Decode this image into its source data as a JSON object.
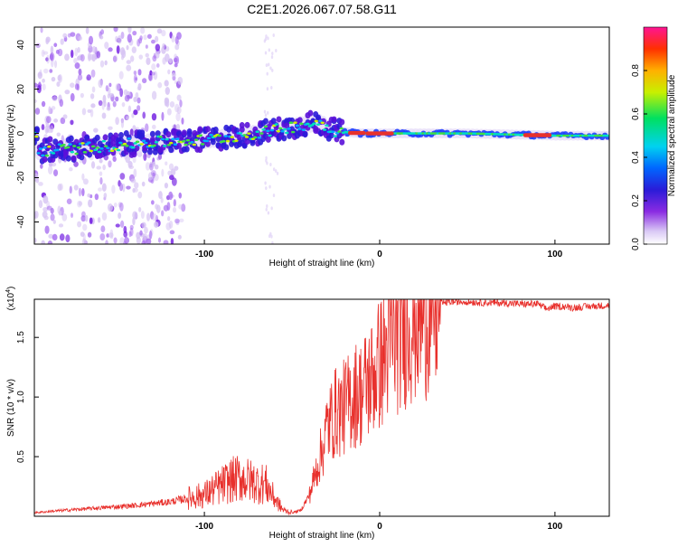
{
  "title": "C2E1.2026.067.07.58.G11",
  "colors": {
    "snr_line": "#e8302c",
    "spectrogram_low": "#c9a8f0",
    "spectrogram_mid": "#00c8ff",
    "spectrogram_high": "#e8302c"
  },
  "chart_data": [
    {
      "type": "heatmap",
      "title": "C2E1.2026.067.07.58.G11",
      "xlabel": "Height of straight line (km)",
      "ylabel": "Frequency (Hz)",
      "xlim": [
        -197,
        131
      ],
      "ylim": [
        -50,
        48
      ],
      "xticks": [
        -100,
        0,
        100
      ],
      "yticks": [
        -40,
        -20,
        0,
        20,
        40
      ],
      "colorbar": {
        "label": "Normalized spectral amplitude",
        "range": [
          0,
          1
        ],
        "ticks": [
          "0.0",
          "0.2",
          "0.4",
          "0.6",
          "0.8"
        ]
      },
      "ridge": {
        "description_points_km_hz": [
          [
            -195,
            -8
          ],
          [
            -160,
            -6
          ],
          [
            -130,
            -4
          ],
          [
            -100,
            -3
          ],
          [
            -70,
            0
          ],
          [
            -50,
            3
          ],
          [
            -35,
            5
          ],
          [
            -25,
            1
          ],
          [
            -10,
            0
          ],
          [
            0,
            0
          ],
          [
            50,
            0
          ],
          [
            100,
            -1
          ],
          [
            131,
            -1
          ]
        ],
        "strong_segments_km": [
          [
            -18,
            -8
          ],
          [
            -8,
            8
          ],
          [
            82,
            98
          ]
        ]
      }
    },
    {
      "type": "line",
      "xlabel": "Height of straight line (km)",
      "ylabel": "SNR (10 * v/v)",
      "multiplier": "(x10^4)",
      "xlim": [
        -197,
        131
      ],
      "ylim": [
        0,
        1.82
      ],
      "xticks": [
        -100,
        0,
        100
      ],
      "yticks": [
        0.5,
        1.0,
        1.5
      ],
      "ytick_labels": [
        "0.5",
        "1.0",
        "1.5"
      ],
      "series": [
        {
          "name": "SNR",
          "x": [
            -197,
            -180,
            -160,
            -140,
            -120,
            -110,
            -100,
            -95,
            -90,
            -85,
            -80,
            -75,
            -70,
            -65,
            -60,
            -55,
            -50,
            -45,
            -40,
            -35,
            -32,
            -30,
            -28,
            -26,
            -24,
            -22,
            -20,
            -18,
            -15,
            -12,
            -10,
            -8,
            -5,
            -2,
            0,
            3,
            6,
            10,
            15,
            20,
            25,
            30,
            40,
            50,
            60,
            70,
            80,
            90,
            95,
            100,
            105,
            110,
            120,
            131
          ],
          "y": [
            0.03,
            0.05,
            0.07,
            0.09,
            0.12,
            0.15,
            0.18,
            0.22,
            0.26,
            0.3,
            0.32,
            0.3,
            0.28,
            0.27,
            0.15,
            0.05,
            0.03,
            0.05,
            0.18,
            0.45,
            0.6,
            0.75,
            0.8,
            0.85,
            0.9,
            0.88,
            0.92,
            0.95,
            1.0,
            1.05,
            1.02,
            1.1,
            1.15,
            1.22,
            1.28,
            1.35,
            1.45,
            1.52,
            1.62,
            1.68,
            1.74,
            1.77,
            1.8,
            1.8,
            1.79,
            1.79,
            1.78,
            1.78,
            1.74,
            1.76,
            1.76,
            1.75,
            1.76,
            1.77
          ]
        }
      ]
    }
  ]
}
